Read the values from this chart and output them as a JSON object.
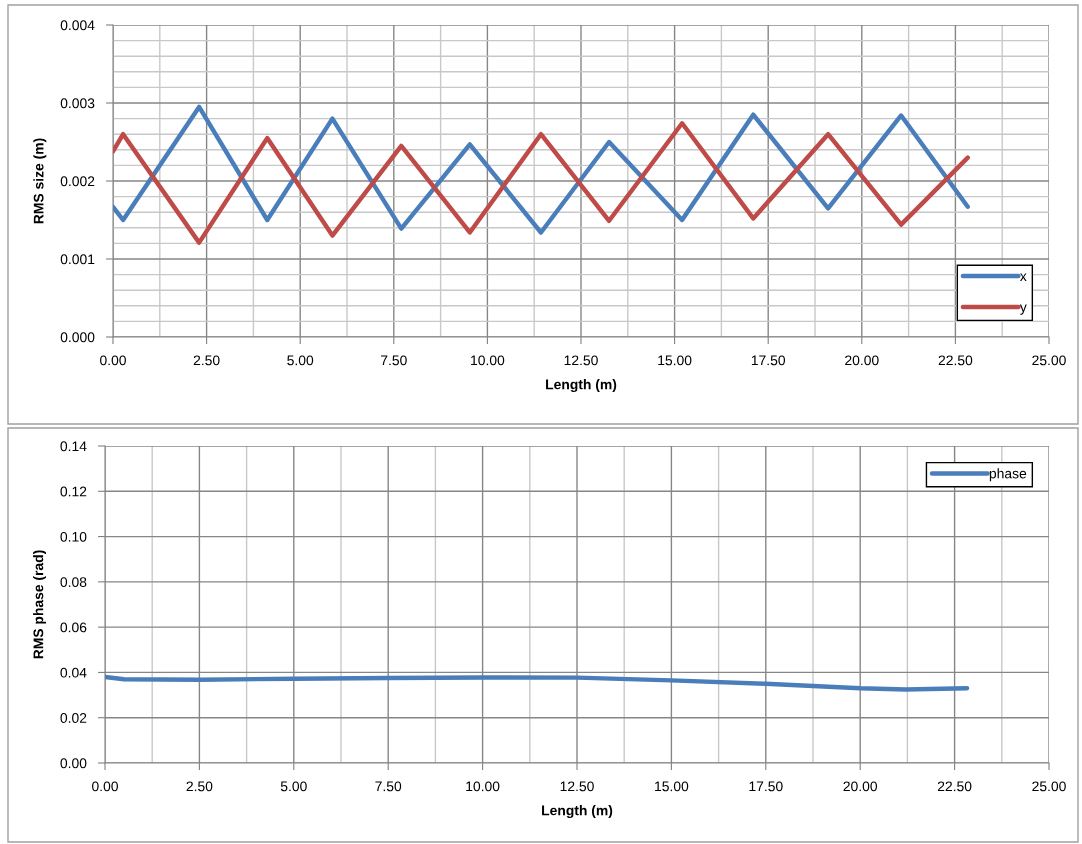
{
  "chart_data": [
    {
      "type": "line",
      "ylabel": "RMS size (m)",
      "xlabel": "Length (m)",
      "xlim": [
        0,
        25
      ],
      "ylim": [
        0,
        0.004
      ],
      "xticks": [
        {
          "value": 0,
          "label": "0.00"
        },
        {
          "value": 1.25,
          "label": null
        },
        {
          "value": 2.5,
          "label": "2.50"
        },
        {
          "value": 3.75,
          "label": null
        },
        {
          "value": 5,
          "label": "5.00"
        },
        {
          "value": 6.25,
          "label": null
        },
        {
          "value": 7.5,
          "label": "7.50"
        },
        {
          "value": 8.75,
          "label": null
        },
        {
          "value": 10,
          "label": "10.00"
        },
        {
          "value": 11.25,
          "label": null
        },
        {
          "value": 12.5,
          "label": "12.50"
        },
        {
          "value": 13.75,
          "label": null
        },
        {
          "value": 15,
          "label": "15.00"
        },
        {
          "value": 16.25,
          "label": null
        },
        {
          "value": 17.5,
          "label": "17.50"
        },
        {
          "value": 18.75,
          "label": null
        },
        {
          "value": 20,
          "label": "20.00"
        },
        {
          "value": 21.25,
          "label": null
        },
        {
          "value": 22.5,
          "label": "22.50"
        },
        {
          "value": 23.75,
          "label": null
        },
        {
          "value": 25,
          "label": "25.00"
        }
      ],
      "yticks": [
        {
          "value": 0,
          "label": "0.000"
        },
        {
          "value": 0.0002,
          "label": null
        },
        {
          "value": 0.0004,
          "label": null
        },
        {
          "value": 0.0006,
          "label": null
        },
        {
          "value": 0.0008,
          "label": null
        },
        {
          "value": 0.001,
          "label": "0.001"
        },
        {
          "value": 0.0012,
          "label": null
        },
        {
          "value": 0.0014,
          "label": null
        },
        {
          "value": 0.0016,
          "label": null
        },
        {
          "value": 0.0018,
          "label": null
        },
        {
          "value": 0.002,
          "label": "0.002"
        },
        {
          "value": 0.0022,
          "label": null
        },
        {
          "value": 0.0024,
          "label": null
        },
        {
          "value": 0.0026,
          "label": null
        },
        {
          "value": 0.0028,
          "label": null
        },
        {
          "value": 0.003,
          "label": "0.003"
        },
        {
          "value": 0.0032,
          "label": null
        },
        {
          "value": 0.0034,
          "label": null
        },
        {
          "value": 0.0036,
          "label": null
        },
        {
          "value": 0.0038,
          "label": null
        },
        {
          "value": 0.004,
          "label": "0.004"
        }
      ],
      "x": [
        0,
        0.27,
        2.3,
        4.12,
        5.86,
        7.7,
        9.53,
        11.43,
        13.25,
        15.2,
        17.1,
        19.1,
        21.05,
        22.83
      ],
      "series": [
        {
          "name": "x",
          "color": "#4a7ebb",
          "values": [
            0.00167,
            0.0015,
            0.00295,
            0.0015,
            0.0028,
            0.00139,
            0.00247,
            0.00134,
            0.0025,
            0.0015,
            0.00285,
            0.00165,
            0.00284,
            0.00167
          ]
        },
        {
          "name": "y",
          "color": "#be4b48",
          "values": [
            0.00238,
            0.0026,
            0.00121,
            0.00255,
            0.0013,
            0.00245,
            0.00134,
            0.0026,
            0.00149,
            0.00274,
            0.00152,
            0.0026,
            0.00144,
            0.0023
          ]
        }
      ],
      "grid": true,
      "legend": "bottom right",
      "marker": "none",
      "line_style": "solid"
    },
    {
      "type": "line",
      "ylabel": "RMS phase (rad)",
      "xlabel": "Length (m)",
      "xlim": [
        0,
        25
      ],
      "ylim": [
        0,
        0.14
      ],
      "xticks": [
        {
          "value": 0,
          "label": "0.00"
        },
        {
          "value": 1.25,
          "label": null
        },
        {
          "value": 2.5,
          "label": "2.50"
        },
        {
          "value": 3.75,
          "label": null
        },
        {
          "value": 5,
          "label": "5.00"
        },
        {
          "value": 6.25,
          "label": null
        },
        {
          "value": 7.5,
          "label": "7.50"
        },
        {
          "value": 8.75,
          "label": null
        },
        {
          "value": 10,
          "label": "10.00"
        },
        {
          "value": 11.25,
          "label": null
        },
        {
          "value": 12.5,
          "label": "12.50"
        },
        {
          "value": 13.75,
          "label": null
        },
        {
          "value": 15,
          "label": "15.00"
        },
        {
          "value": 16.25,
          "label": null
        },
        {
          "value": 17.5,
          "label": "17.50"
        },
        {
          "value": 18.75,
          "label": null
        },
        {
          "value": 20,
          "label": "20.00"
        },
        {
          "value": 21.25,
          "label": null
        },
        {
          "value": 22.5,
          "label": "22.50"
        },
        {
          "value": 23.75,
          "label": null
        },
        {
          "value": 25,
          "label": "25.00"
        }
      ],
      "yticks": [
        {
          "value": 0,
          "label": "0.00"
        },
        {
          "value": 0.02,
          "label": "0.02"
        },
        {
          "value": 0.04,
          "label": "0.04"
        },
        {
          "value": 0.06,
          "label": "0.06"
        },
        {
          "value": 0.08,
          "label": "0.08"
        },
        {
          "value": 0.1,
          "label": "0.10"
        },
        {
          "value": 0.12,
          "label": "0.12"
        },
        {
          "value": 0.14,
          "label": "0.14"
        }
      ],
      "x": [
        0,
        0.5,
        2.5,
        5,
        7.5,
        10,
        12.5,
        15,
        17.5,
        20,
        21.2,
        22.83
      ],
      "series": [
        {
          "name": "phase",
          "color": "#4a7ebb",
          "values": [
            0.038,
            0.037,
            0.0368,
            0.0372,
            0.0375,
            0.0378,
            0.0377,
            0.0365,
            0.035,
            0.033,
            0.0325,
            0.033
          ]
        }
      ],
      "grid": true,
      "legend": "top right",
      "marker": "none",
      "line_style": "solid"
    }
  ]
}
